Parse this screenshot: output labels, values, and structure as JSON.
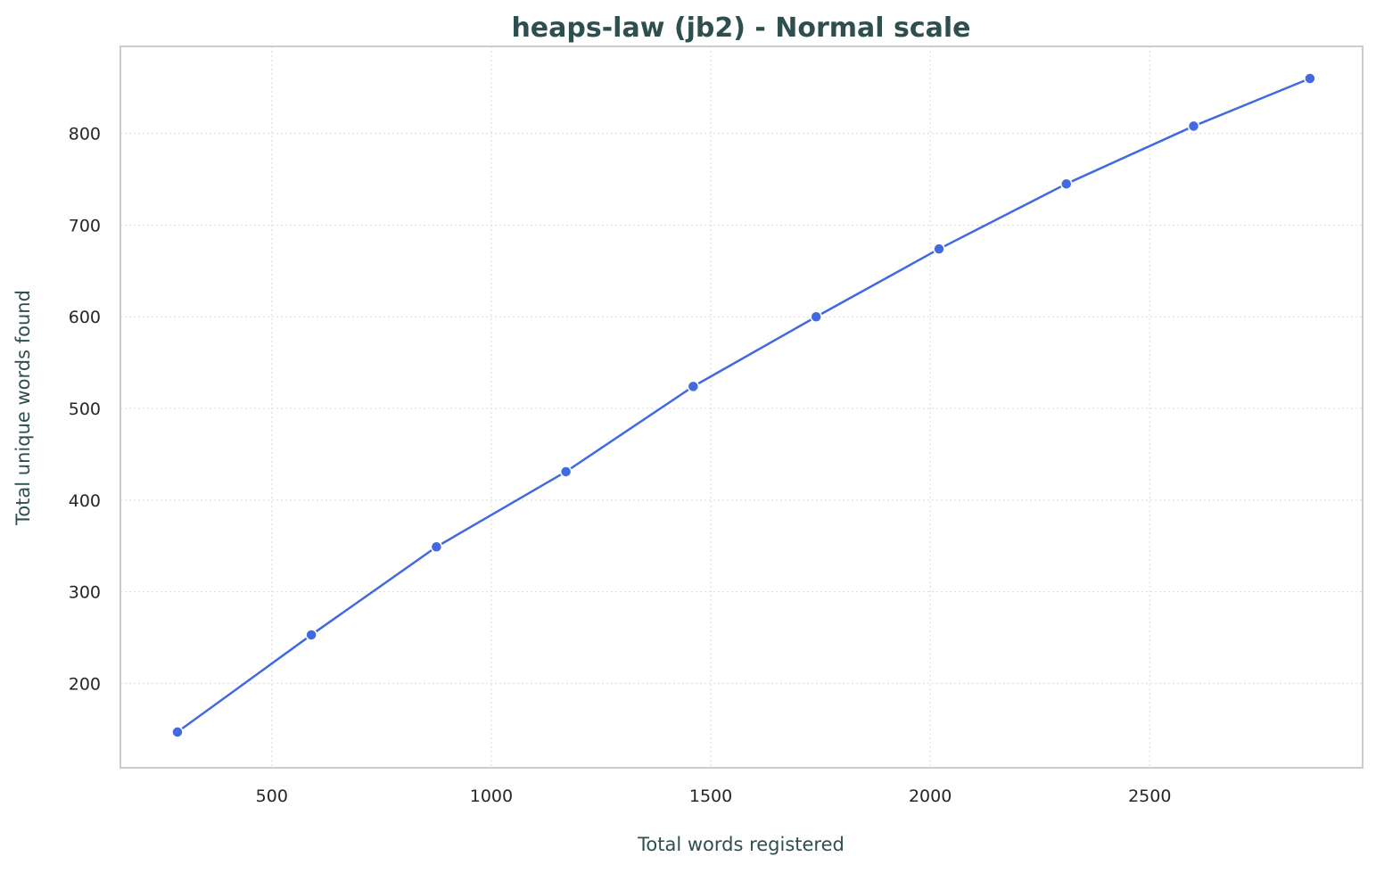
{
  "chart_data": {
    "type": "line",
    "title": "heaps-law (jb2) - Normal scale",
    "xlabel": "Total words registered",
    "ylabel": "Total unique words found",
    "xlim": [
      155,
      2985
    ],
    "ylim": [
      108,
      895
    ],
    "x_ticks": [
      500,
      1000,
      1500,
      2000,
      2500
    ],
    "y_ticks": [
      200,
      300,
      400,
      500,
      600,
      700,
      800
    ],
    "grid": true,
    "series": [
      {
        "color": "#4169e1",
        "marker": "circle",
        "x": [
          285,
          590,
          875,
          1170,
          1460,
          1740,
          2020,
          2310,
          2600,
          2865
        ],
        "y": [
          147,
          253,
          349,
          431,
          524,
          600,
          674,
          745,
          808,
          860
        ]
      }
    ]
  }
}
